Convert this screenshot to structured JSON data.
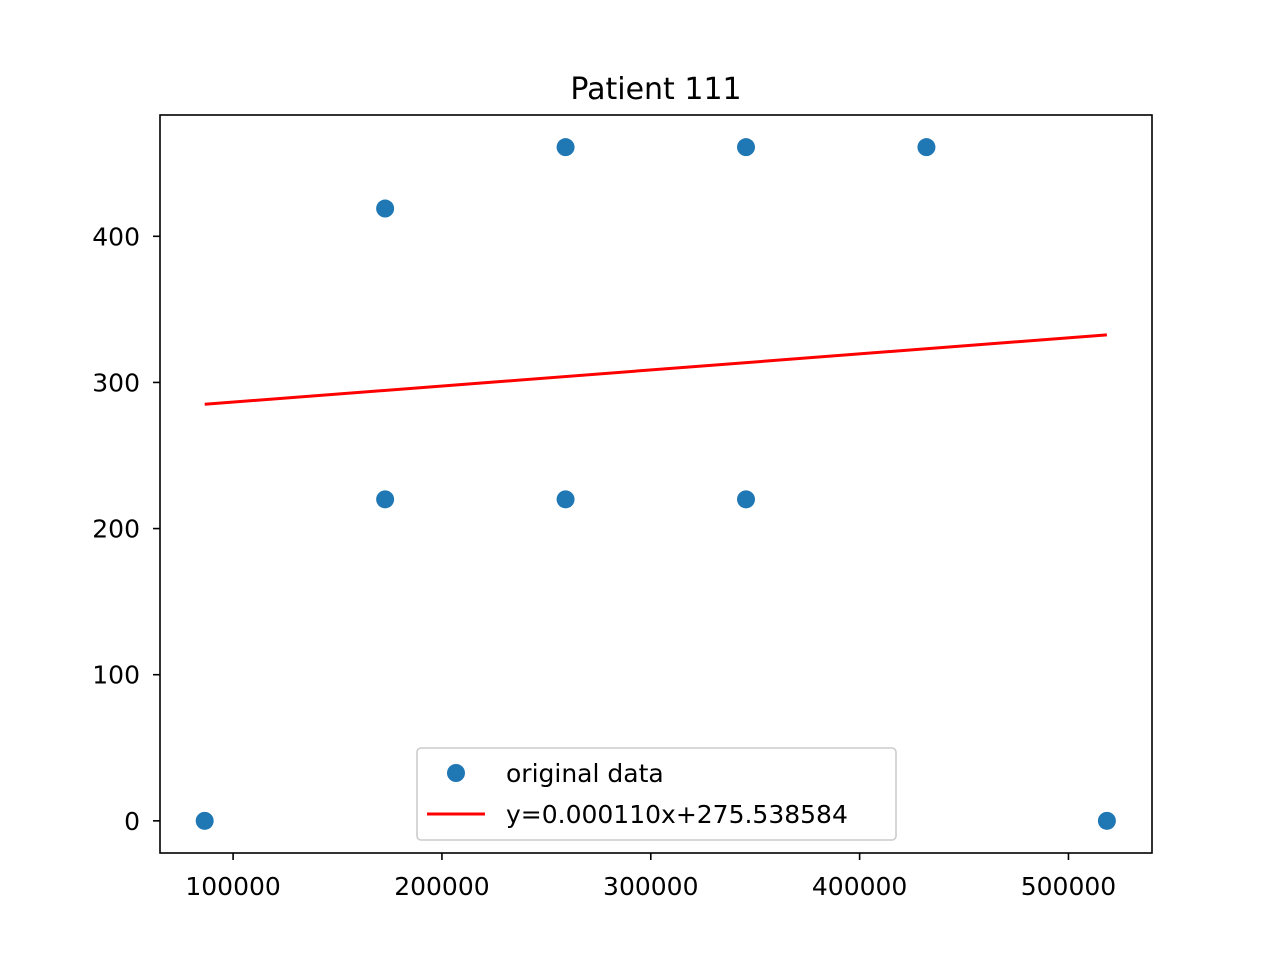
{
  "chart_data": {
    "type": "scatter",
    "title": "Patient 111",
    "xlabel": "",
    "ylabel": "",
    "xlim": [
      65000,
      540000
    ],
    "ylim": [
      -22,
      483
    ],
    "x_ticks": [
      100000,
      200000,
      300000,
      400000,
      500000
    ],
    "x_tick_labels": [
      "100000",
      "200000",
      "300000",
      "400000",
      "500000"
    ],
    "y_ticks": [
      0,
      100,
      200,
      300,
      400
    ],
    "y_tick_labels": [
      "0",
      "100",
      "200",
      "300",
      "400"
    ],
    "grid": false,
    "legend_position": "lower-center",
    "series": [
      {
        "name": "original data",
        "kind": "scatter",
        "color": "#1f77b4",
        "points": [
          {
            "x": 86400,
            "y": 0
          },
          {
            "x": 172800,
            "y": 419
          },
          {
            "x": 172800,
            "y": 220
          },
          {
            "x": 259200,
            "y": 461
          },
          {
            "x": 259200,
            "y": 220
          },
          {
            "x": 345600,
            "y": 461
          },
          {
            "x": 345600,
            "y": 220
          },
          {
            "x": 432000,
            "y": 461
          },
          {
            "x": 518400,
            "y": 0
          }
        ]
      },
      {
        "name": "y=0.000110x+275.538584",
        "kind": "line",
        "color": "#ff0000",
        "slope": 0.00011,
        "intercept": 275.538584,
        "x_range": [
          86400,
          518400
        ]
      }
    ]
  }
}
